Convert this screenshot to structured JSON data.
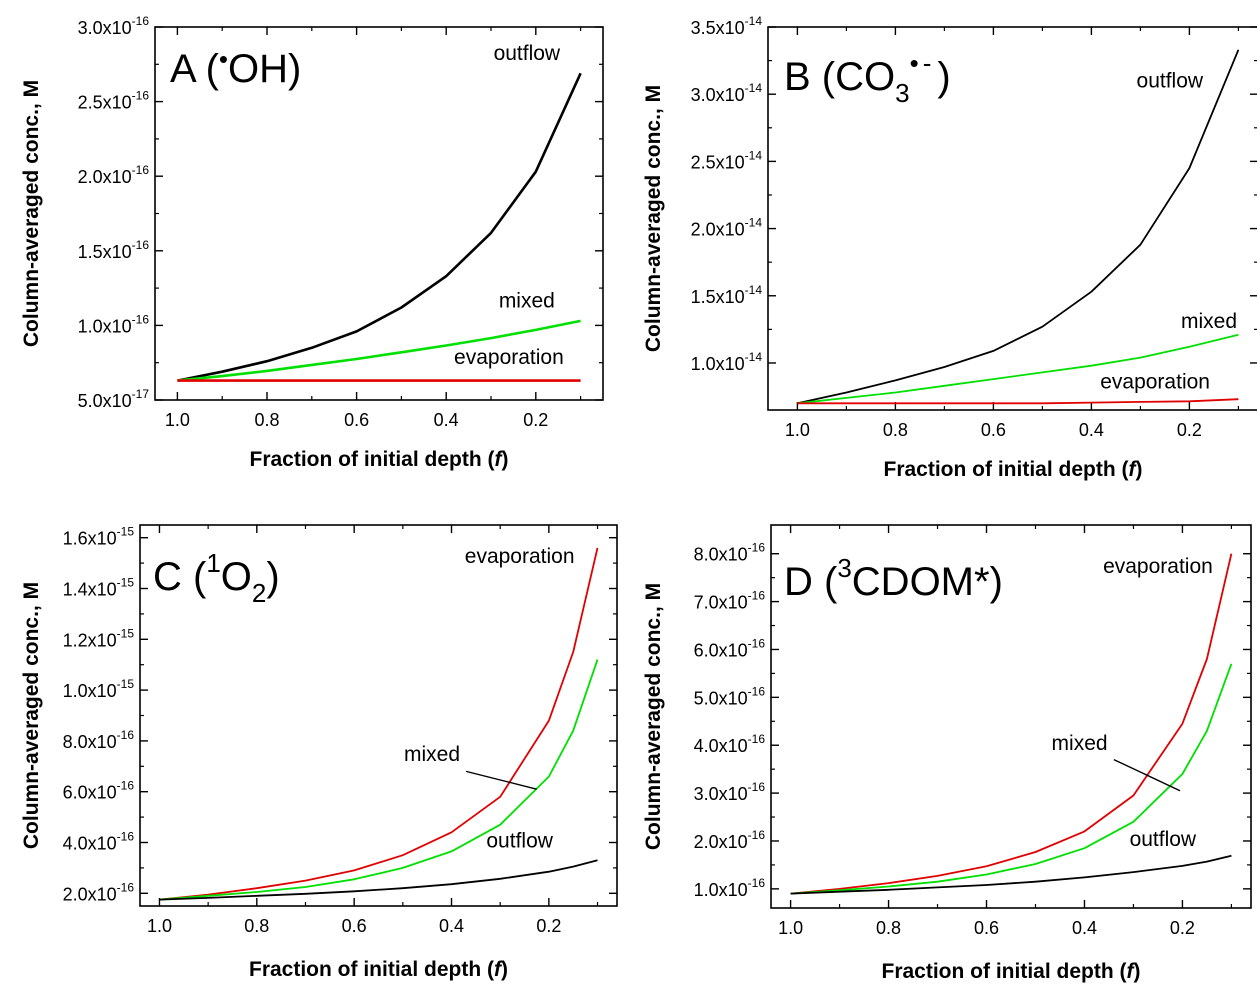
{
  "chart_data": [
    {
      "panel": "A",
      "type": "line",
      "title": {
        "letter": "A",
        "open": "(",
        "dot": "•",
        "species": "OH",
        "close": ")"
      },
      "xlabel": {
        "text": "Fraction of initial depth (",
        "symbol": "f",
        "close": ")"
      },
      "ylabel": "Column-averaged conc., M",
      "xlim": [
        1.05,
        0.05
      ],
      "ylim": [
        5e-17,
        3e-16
      ],
      "x_ticks": [
        {
          "value": 1.0,
          "label": "1.0"
        },
        {
          "value": 0.8,
          "label": "0.8"
        },
        {
          "value": 0.6,
          "label": "0.6"
        },
        {
          "value": 0.4,
          "label": "0.4"
        },
        {
          "value": 0.2,
          "label": "0.2"
        }
      ],
      "y_ticks": [
        {
          "value": 5e-17,
          "mantissa": "5.0x10",
          "exponent": "-17"
        },
        {
          "value": 1e-16,
          "mantissa": "1.0x10",
          "exponent": "-16"
        },
        {
          "value": 1.5e-16,
          "mantissa": "1.5x10",
          "exponent": "-16"
        },
        {
          "value": 2e-16,
          "mantissa": "2.0x10",
          "exponent": "-16"
        },
        {
          "value": 2.5e-16,
          "mantissa": "2.5x10",
          "exponent": "-16"
        },
        {
          "value": 3e-16,
          "mantissa": "3.0x10",
          "exponent": "-16"
        }
      ],
      "series": [
        {
          "key": "outflow",
          "color": "#000000",
          "x": [
            1.0,
            0.9,
            0.8,
            0.7,
            0.6,
            0.5,
            0.4,
            0.3,
            0.2,
            0.1
          ],
          "values": [
            6.3e-17,
            6.9e-17,
            7.6e-17,
            8.5e-17,
            9.6e-17,
            1.12e-16,
            1.33e-16,
            1.62e-16,
            2.03e-16,
            2.69e-16
          ]
        },
        {
          "key": "mixed",
          "color": "#00e000",
          "x": [
            1.0,
            0.9,
            0.8,
            0.7,
            0.6,
            0.5,
            0.4,
            0.3,
            0.2,
            0.1
          ],
          "values": [
            6.3e-17,
            6.6e-17,
            6.95e-17,
            7.35e-17,
            7.75e-17,
            8.2e-17,
            8.65e-17,
            9.15e-17,
            9.7e-17,
            1.03e-16
          ]
        },
        {
          "key": "evaporation",
          "color": "#e00000",
          "x": [
            1.0,
            0.9,
            0.8,
            0.7,
            0.6,
            0.5,
            0.4,
            0.3,
            0.2,
            0.1
          ],
          "values": [
            6.3e-17,
            6.3e-17,
            6.3e-17,
            6.3e-17,
            6.3e-17,
            6.3e-17,
            6.3e-17,
            6.3e-17,
            6.3e-17,
            6.3e-17
          ]
        }
      ],
      "annotations": [
        {
          "key": "outflow",
          "text": "outflow",
          "x": 0.22,
          "y": 2.78e-16
        },
        {
          "key": "mixed",
          "text": "mixed",
          "x": 0.22,
          "y": 1.12e-16
        },
        {
          "key": "evaporation",
          "text": "evaporation",
          "x": 0.26,
          "y": 7.4e-17
        }
      ],
      "pointer": null
    },
    {
      "panel": "B",
      "type": "line",
      "title": {
        "letter": "B",
        "open": "(CO",
        "sub": "3",
        "dot": "•",
        "charge": "-",
        "close": ")"
      },
      "xlabel": {
        "text": "Fraction of initial depth (",
        "symbol": "f",
        "close": ")"
      },
      "ylabel": "Column-averaged conc., M",
      "xlim": [
        1.06,
        0.06
      ],
      "ylim": [
        6.5e-15,
        3.5e-14
      ],
      "x_ticks": [
        {
          "value": 1.0,
          "label": "1.0"
        },
        {
          "value": 0.8,
          "label": "0.8"
        },
        {
          "value": 0.6,
          "label": "0.6"
        },
        {
          "value": 0.4,
          "label": "0.4"
        },
        {
          "value": 0.2,
          "label": "0.2"
        }
      ],
      "y_ticks": [
        {
          "value": 1e-14,
          "mantissa": "1.0x10",
          "exponent": "-14"
        },
        {
          "value": 1.5e-14,
          "mantissa": "1.5x10",
          "exponent": "-14"
        },
        {
          "value": 2e-14,
          "mantissa": "2.0x10",
          "exponent": "-14"
        },
        {
          "value": 2.5e-14,
          "mantissa": "2.5x10",
          "exponent": "-14"
        },
        {
          "value": 3e-14,
          "mantissa": "3.0x10",
          "exponent": "-14"
        },
        {
          "value": 3.5e-14,
          "mantissa": "3.5x10",
          "exponent": "-14"
        }
      ],
      "series": [
        {
          "key": "outflow",
          "color": "#000000",
          "x": [
            1.0,
            0.9,
            0.8,
            0.7,
            0.6,
            0.5,
            0.4,
            0.3,
            0.2,
            0.1
          ],
          "values": [
            7e-15,
            7.8e-15,
            8.7e-15,
            9.7e-15,
            1.09e-14,
            1.27e-14,
            1.53e-14,
            1.88e-14,
            2.45e-14,
            3.33e-14
          ]
        },
        {
          "key": "mixed",
          "color": "#00e000",
          "x": [
            1.0,
            0.9,
            0.8,
            0.7,
            0.6,
            0.5,
            0.4,
            0.3,
            0.2,
            0.1
          ],
          "values": [
            7e-15,
            7.4e-15,
            7.8e-15,
            8.3e-15,
            8.8e-15,
            9.3e-15,
            9.8e-15,
            1.04e-14,
            1.12e-14,
            1.21e-14
          ]
        },
        {
          "key": "evaporation",
          "color": "#e00000",
          "x": [
            1.0,
            0.9,
            0.8,
            0.7,
            0.6,
            0.5,
            0.4,
            0.3,
            0.2,
            0.1
          ],
          "values": [
            7e-15,
            7e-15,
            7e-15,
            7e-15,
            7e-15,
            7e-15,
            7.05e-15,
            7.1e-15,
            7.15e-15,
            7.3e-15
          ]
        }
      ],
      "annotations": [
        {
          "key": "outflow",
          "text": "outflow",
          "x": 0.24,
          "y": 3.05e-14
        },
        {
          "key": "mixed",
          "text": "mixed",
          "x": 0.16,
          "y": 1.26e-14
        },
        {
          "key": "evaporation",
          "text": "evaporation",
          "x": 0.27,
          "y": 8.1e-15
        }
      ],
      "pointer": null
    },
    {
      "panel": "C",
      "type": "line",
      "title": {
        "letter": "C",
        "open": "(",
        "sup": "1",
        "species": "O",
        "sub": "2",
        "close": ")"
      },
      "xlabel": {
        "text": "Fraction of initial depth (",
        "symbol": "f",
        "close": ")"
      },
      "ylabel": "Column-averaged conc., M",
      "xlim": [
        1.04,
        0.06
      ],
      "ylim": [
        1.5e-16,
        1.65e-15
      ],
      "x_ticks": [
        {
          "value": 1.0,
          "label": "1.0"
        },
        {
          "value": 0.8,
          "label": "0.8"
        },
        {
          "value": 0.6,
          "label": "0.6"
        },
        {
          "value": 0.4,
          "label": "0.4"
        },
        {
          "value": 0.2,
          "label": "0.2"
        }
      ],
      "y_ticks": [
        {
          "value": 2e-16,
          "mantissa": "2.0x10",
          "exponent": "-16"
        },
        {
          "value": 4e-16,
          "mantissa": "4.0x10",
          "exponent": "-16"
        },
        {
          "value": 6e-16,
          "mantissa": "6.0x10",
          "exponent": "-16"
        },
        {
          "value": 8e-16,
          "mantissa": "8.0x10",
          "exponent": "-16"
        },
        {
          "value": 1e-15,
          "mantissa": "1.0x10",
          "exponent": "-15"
        },
        {
          "value": 1.2e-15,
          "mantissa": "1.2x10",
          "exponent": "-15"
        },
        {
          "value": 1.4e-15,
          "mantissa": "1.4x10",
          "exponent": "-15"
        },
        {
          "value": 1.6e-15,
          "mantissa": "1.6x10",
          "exponent": "-15"
        }
      ],
      "series": [
        {
          "key": "evaporation",
          "color": "#e00000",
          "x": [
            1.0,
            0.9,
            0.8,
            0.7,
            0.6,
            0.5,
            0.4,
            0.3,
            0.2,
            0.15,
            0.1
          ],
          "values": [
            1.75e-16,
            1.95e-16,
            2.2e-16,
            2.5e-16,
            2.9e-16,
            3.5e-16,
            4.4e-16,
            5.8e-16,
            8.8e-16,
            1.15e-15,
            1.56e-15
          ]
        },
        {
          "key": "mixed",
          "color": "#00e000",
          "x": [
            1.0,
            0.9,
            0.8,
            0.7,
            0.6,
            0.5,
            0.4,
            0.3,
            0.2,
            0.15,
            0.1
          ],
          "values": [
            1.75e-16,
            1.9e-16,
            2.05e-16,
            2.25e-16,
            2.55e-16,
            3e-16,
            3.65e-16,
            4.7e-16,
            6.6e-16,
            8.4e-16,
            1.12e-15
          ]
        },
        {
          "key": "outflow",
          "color": "#000000",
          "x": [
            1.0,
            0.9,
            0.8,
            0.7,
            0.6,
            0.5,
            0.4,
            0.3,
            0.2,
            0.15,
            0.1
          ],
          "values": [
            1.75e-16,
            1.82e-16,
            1.9e-16,
            1.98e-16,
            2.08e-16,
            2.2e-16,
            2.36e-16,
            2.57e-16,
            2.85e-16,
            3.05e-16,
            3.3e-16
          ]
        }
      ],
      "annotations": [
        {
          "key": "evaporation",
          "text": "evaporation",
          "x": 0.26,
          "y": 1.5e-15
        },
        {
          "key": "mixed",
          "text": "mixed",
          "x": 0.44,
          "y": 7.2e-16
        },
        {
          "key": "outflow",
          "text": "outflow",
          "x": 0.26,
          "y": 3.8e-16
        }
      ],
      "pointer": {
        "x1": 0.37,
        "y1": 6.8e-16,
        "x2": 0.225,
        "y2": 6.1e-16
      }
    },
    {
      "panel": "D",
      "type": "line",
      "title": {
        "letter": "D",
        "open": "(",
        "sup": "3",
        "species": "CDOM*",
        "close": ")"
      },
      "xlabel": {
        "text": "Fraction of initial depth (",
        "symbol": "f",
        "close": ")"
      },
      "ylabel": "Column-averaged conc., M",
      "xlim": [
        1.04,
        0.06
      ],
      "ylim": [
        6e-17,
        8.6e-16
      ],
      "x_ticks": [
        {
          "value": 1.0,
          "label": "1.0"
        },
        {
          "value": 0.8,
          "label": "0.8"
        },
        {
          "value": 0.6,
          "label": "0.6"
        },
        {
          "value": 0.4,
          "label": "0.4"
        },
        {
          "value": 0.2,
          "label": "0.2"
        }
      ],
      "y_ticks": [
        {
          "value": 1e-16,
          "mantissa": "1.0x10",
          "exponent": "-16"
        },
        {
          "value": 2e-16,
          "mantissa": "2.0x10",
          "exponent": "-16"
        },
        {
          "value": 3e-16,
          "mantissa": "3.0x10",
          "exponent": "-16"
        },
        {
          "value": 4e-16,
          "mantissa": "4.0x10",
          "exponent": "-16"
        },
        {
          "value": 5e-16,
          "mantissa": "5.0x10",
          "exponent": "-16"
        },
        {
          "value": 6e-16,
          "mantissa": "6.0x10",
          "exponent": "-16"
        },
        {
          "value": 7e-16,
          "mantissa": "7.0x10",
          "exponent": "-16"
        },
        {
          "value": 8e-16,
          "mantissa": "8.0x10",
          "exponent": "-16"
        }
      ],
      "series": [
        {
          "key": "evaporation",
          "color": "#e00000",
          "x": [
            1.0,
            0.9,
            0.8,
            0.7,
            0.6,
            0.5,
            0.4,
            0.3,
            0.2,
            0.15,
            0.1
          ],
          "values": [
            9e-17,
            1e-16,
            1.12e-16,
            1.27e-16,
            1.47e-16,
            1.77e-16,
            2.2e-16,
            2.95e-16,
            4.45e-16,
            5.8e-16,
            8e-16
          ]
        },
        {
          "key": "mixed",
          "color": "#00e000",
          "x": [
            1.0,
            0.9,
            0.8,
            0.7,
            0.6,
            0.5,
            0.4,
            0.3,
            0.2,
            0.15,
            0.1
          ],
          "values": [
            9e-17,
            9.7e-17,
            1.05e-16,
            1.15e-16,
            1.3e-16,
            1.52e-16,
            1.85e-16,
            2.4e-16,
            3.4e-16,
            4.3e-16,
            5.7e-16
          ]
        },
        {
          "key": "outflow",
          "color": "#000000",
          "x": [
            1.0,
            0.9,
            0.8,
            0.7,
            0.6,
            0.5,
            0.4,
            0.3,
            0.2,
            0.15,
            0.1
          ],
          "values": [
            9e-17,
            9.4e-17,
            9.8e-17,
            1.03e-16,
            1.08e-16,
            1.15e-16,
            1.24e-16,
            1.35e-16,
            1.48e-16,
            1.57e-16,
            1.69e-16
          ]
        }
      ],
      "annotations": [
        {
          "key": "evaporation",
          "text": "evaporation",
          "x": 0.25,
          "y": 7.6e-16
        },
        {
          "key": "mixed",
          "text": "mixed",
          "x": 0.41,
          "y": 3.9e-16
        },
        {
          "key": "outflow",
          "text": "outflow",
          "x": 0.24,
          "y": 1.9e-16
        }
      ],
      "pointer": {
        "x1": 0.34,
        "y1": 3.7e-16,
        "x2": 0.205,
        "y2": 3.05e-16
      }
    }
  ]
}
